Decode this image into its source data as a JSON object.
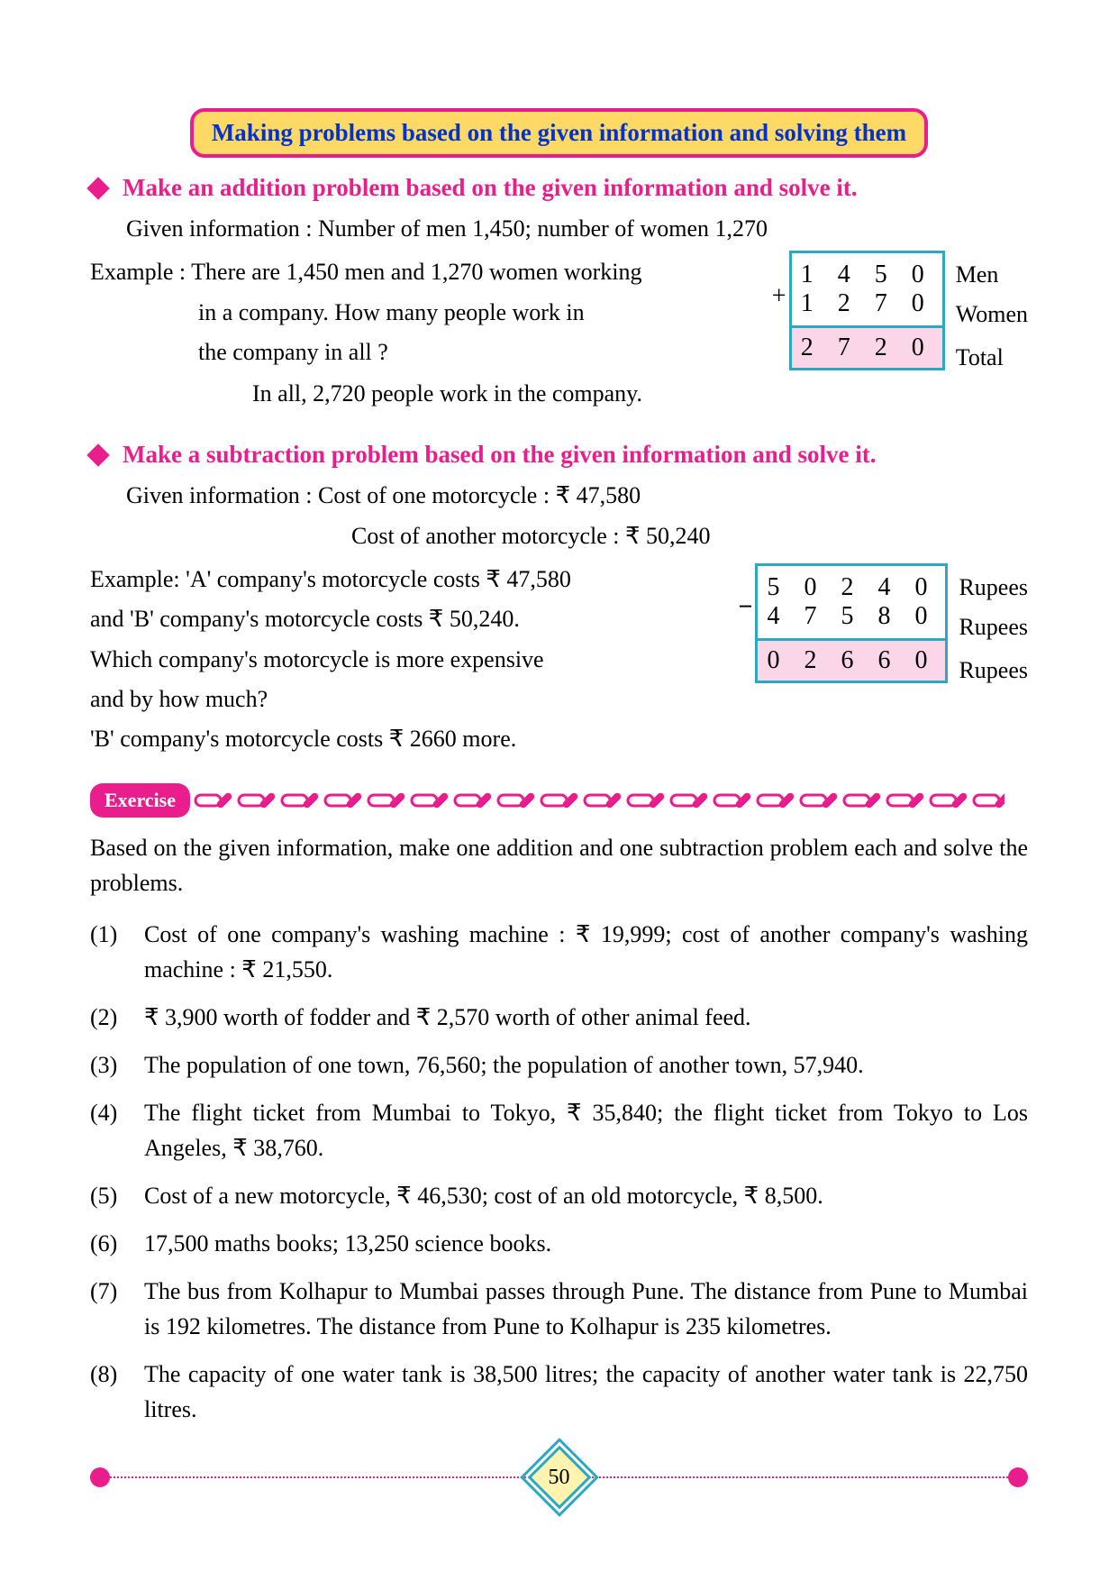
{
  "header": {
    "title": "Making problems based on the given information and solving them",
    "header_bg": "#ffd966",
    "header_border": "#e91e8c",
    "header_text_color": "#0033cc"
  },
  "section1": {
    "heading": "Make an addition problem based on the given information and solve it.",
    "given": "Given information : Number of men 1,450; number of women 1,270",
    "example_label": "Example :",
    "example_line1": "There are 1,450 men and 1,270 women working",
    "example_line2": "in a company. How many people work in",
    "example_line3": "the company in all ?",
    "answer": "In all, 2,720 people work in the company.",
    "calc": {
      "row1": "1 4 5 0",
      "row1_label": "Men",
      "op": "+",
      "row2": "1 2 7 0",
      "row2_label": "Women",
      "result": "2 7 2 0",
      "result_label": "Total"
    }
  },
  "section2": {
    "heading": "Make a subtraction problem based on the given information and solve it.",
    "given1": "Given information : Cost of one motorcycle   :     ₹ 47,580",
    "given2": "Cost of another motorcycle : ₹ 50,240",
    "example_line1": "Example: 'A' company's motorcycle costs ₹ 47,580",
    "example_line2": "and 'B' company's motorcycle costs ₹ 50,240.",
    "example_line3": "Which company's motorcycle is more expensive",
    "example_line4": "and by how much?",
    "answer": "'B' company's motorcycle costs ₹ 2660 more.",
    "calc": {
      "row1": "5 0 2 4 0",
      "row1_label": "Rupees",
      "op": "−",
      "row2": "4 7 5 8 0",
      "row2_label": "Rupees",
      "result": "0 2 6 6 0",
      "result_label": "Rupees"
    }
  },
  "exercise": {
    "label": "Exercise",
    "intro": "Based on the given information, make one addition and one subtraction problem each and solve the problems.",
    "items": [
      {
        "num": "(1)",
        "text": "Cost of one company's washing machine : ₹ 19,999; cost of another company's washing machine : ₹ 21,550."
      },
      {
        "num": "(2)",
        "text": "₹ 3,900 worth of fodder and ₹ 2,570 worth of other animal feed."
      },
      {
        "num": "(3)",
        "text": "The population of one town, 76,560; the population of another town, 57,940."
      },
      {
        "num": "(4)",
        "text": "The flight ticket from Mumbai to Tokyo, ₹ 35,840; the flight ticket from Tokyo to Los Angeles, ₹ 38,760."
      },
      {
        "num": "(5)",
        "text": "Cost of a new motorcycle, ₹ 46,530; cost of an old motorcycle, ₹ 8,500."
      },
      {
        "num": "(6)",
        "text": "17,500 maths books; 13,250 science books."
      },
      {
        "num": "(7)",
        "text": "The bus from Kolhapur to Mumbai passes through Pune. The distance from Pune to Mumbai is 192 kilometres. The distance from Pune to Kolhapur is 235 kilometres."
      },
      {
        "num": "(8)",
        "text": "The capacity of one water tank is 38,500 litres; the capacity of another water tank is 22,750 litres."
      }
    ]
  },
  "page_number": "50",
  "colors": {
    "magenta": "#e91e8c",
    "cyan": "#2aa8c4",
    "yellow": "#ffd966",
    "pink_fill": "#fbd6e8",
    "blue_text": "#0033cc"
  }
}
